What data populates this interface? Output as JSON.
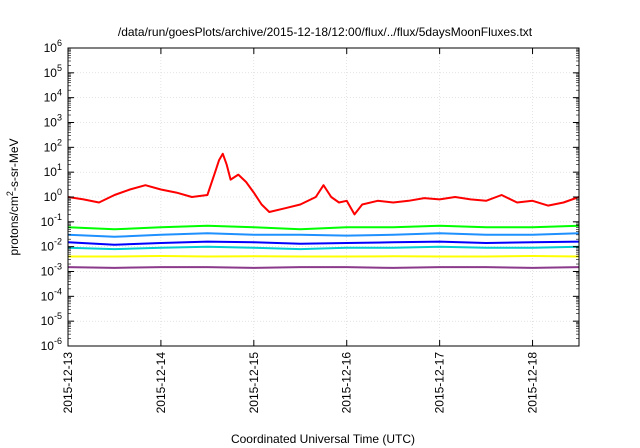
{
  "chart_data": {
    "type": "line",
    "title": "/data/run/goesPlots/archive/2015-12-18/12:00/flux/../flux/5daysMoonFluxes.txt",
    "xlabel": "Coordinated Universal Time (UTC)",
    "ylabel": "protons/cm²-s-sr-MeV",
    "yscale": "log",
    "ylim": [
      1e-06,
      1000000.0
    ],
    "xlim": [
      "2015-12-13",
      "2015-12-18 12:00"
    ],
    "x_ticks": [
      "2015-12-13",
      "2015-12-14",
      "2015-12-15",
      "2015-12-16",
      "2015-12-17",
      "2015-12-18"
    ],
    "y_ticks": [
      {
        "base": "10",
        "exp": "-6"
      },
      {
        "base": "10",
        "exp": "-5"
      },
      {
        "base": "10",
        "exp": "-4"
      },
      {
        "base": "10",
        "exp": "-3"
      },
      {
        "base": "10",
        "exp": "-2"
      },
      {
        "base": "10",
        "exp": "-1"
      },
      {
        "base": "10",
        "exp": "0"
      },
      {
        "base": "10",
        "exp": "1"
      },
      {
        "base": "10",
        "exp": "2"
      },
      {
        "base": "10",
        "exp": "3"
      },
      {
        "base": "10",
        "exp": "4"
      },
      {
        "base": "10",
        "exp": "5"
      },
      {
        "base": "10",
        "exp": "6"
      }
    ],
    "grid": true,
    "series": [
      {
        "color": "#ff0000",
        "x": [
          "2015-12-13 00:00",
          "2015-12-13 04:00",
          "2015-12-13 08:00",
          "2015-12-13 12:00",
          "2015-12-13 16:00",
          "2015-12-13 20:00",
          "2015-12-14 00:00",
          "2015-12-14 04:00",
          "2015-12-14 08:00",
          "2015-12-14 12:00",
          "2015-12-14 14:00",
          "2015-12-14 15:00",
          "2015-12-14 16:00",
          "2015-12-14 17:00",
          "2015-12-14 18:00",
          "2015-12-14 20:00",
          "2015-12-14 22:00",
          "2015-12-15 00:00",
          "2015-12-15 02:00",
          "2015-12-15 04:00",
          "2015-12-15 08:00",
          "2015-12-15 12:00",
          "2015-12-15 16:00",
          "2015-12-15 18:00",
          "2015-12-15 20:00",
          "2015-12-15 22:00",
          "2015-12-16 00:00",
          "2015-12-16 02:00",
          "2015-12-16 04:00",
          "2015-12-16 08:00",
          "2015-12-16 12:00",
          "2015-12-16 16:00",
          "2015-12-16 20:00",
          "2015-12-17 00:00",
          "2015-12-17 04:00",
          "2015-12-17 08:00",
          "2015-12-17 12:00",
          "2015-12-17 16:00",
          "2015-12-17 20:00",
          "2015-12-18 00:00",
          "2015-12-18 04:00",
          "2015-12-18 08:00",
          "2015-12-18 12:00"
        ],
        "y": [
          1.0,
          0.8,
          0.6,
          1.2,
          2.0,
          3.0,
          2.0,
          1.5,
          1.0,
          1.2,
          10,
          30,
          55,
          20,
          5,
          8,
          4,
          1.5,
          0.5,
          0.25,
          0.35,
          0.5,
          1.0,
          3.0,
          1.0,
          0.6,
          0.7,
          0.2,
          0.5,
          0.7,
          0.6,
          0.7,
          0.9,
          0.8,
          1.0,
          0.8,
          0.7,
          1.2,
          0.6,
          0.7,
          0.45,
          0.6,
          1.0
        ]
      },
      {
        "color": "#00ff00",
        "x": [
          "2015-12-13 00:00",
          "2015-12-13 12:00",
          "2015-12-14 00:00",
          "2015-12-14 12:00",
          "2015-12-15 00:00",
          "2015-12-15 12:00",
          "2015-12-16 00:00",
          "2015-12-16 12:00",
          "2015-12-17 00:00",
          "2015-12-17 12:00",
          "2015-12-18 00:00",
          "2015-12-18 12:00"
        ],
        "y": [
          0.06,
          0.05,
          0.06,
          0.07,
          0.06,
          0.05,
          0.06,
          0.06,
          0.07,
          0.06,
          0.06,
          0.07
        ]
      },
      {
        "color": "#1e90ff",
        "x": [
          "2015-12-13 00:00",
          "2015-12-13 12:00",
          "2015-12-14 00:00",
          "2015-12-14 12:00",
          "2015-12-15 00:00",
          "2015-12-15 12:00",
          "2015-12-16 00:00",
          "2015-12-16 12:00",
          "2015-12-17 00:00",
          "2015-12-17 12:00",
          "2015-12-18 00:00",
          "2015-12-18 12:00"
        ],
        "y": [
          0.03,
          0.025,
          0.03,
          0.035,
          0.03,
          0.03,
          0.028,
          0.03,
          0.035,
          0.03,
          0.03,
          0.035
        ]
      },
      {
        "color": "#0000ff",
        "x": [
          "2015-12-13 00:00",
          "2015-12-13 12:00",
          "2015-12-14 00:00",
          "2015-12-14 12:00",
          "2015-12-15 00:00",
          "2015-12-15 12:00",
          "2015-12-16 00:00",
          "2015-12-16 12:00",
          "2015-12-17 00:00",
          "2015-12-17 12:00",
          "2015-12-18 00:00",
          "2015-12-18 12:00"
        ],
        "y": [
          0.015,
          0.012,
          0.014,
          0.016,
          0.015,
          0.013,
          0.014,
          0.015,
          0.016,
          0.014,
          0.015,
          0.016
        ]
      },
      {
        "color": "#00ced1",
        "x": [
          "2015-12-13 00:00",
          "2015-12-13 12:00",
          "2015-12-14 00:00",
          "2015-12-14 12:00",
          "2015-12-15 00:00",
          "2015-12-15 12:00",
          "2015-12-16 00:00",
          "2015-12-16 12:00",
          "2015-12-17 00:00",
          "2015-12-17 12:00",
          "2015-12-18 00:00",
          "2015-12-18 12:00"
        ],
        "y": [
          0.009,
          0.008,
          0.009,
          0.01,
          0.009,
          0.008,
          0.009,
          0.009,
          0.01,
          0.009,
          0.009,
          0.01
        ]
      },
      {
        "color": "#ffff00",
        "x": [
          "2015-12-13 00:00",
          "2015-12-13 12:00",
          "2015-12-14 00:00",
          "2015-12-14 12:00",
          "2015-12-15 00:00",
          "2015-12-15 12:00",
          "2015-12-16 00:00",
          "2015-12-16 12:00",
          "2015-12-17 00:00",
          "2015-12-17 12:00",
          "2015-12-18 00:00",
          "2015-12-18 12:00"
        ],
        "y": [
          0.004,
          0.004,
          0.0042,
          0.004,
          0.0041,
          0.004,
          0.004,
          0.0041,
          0.004,
          0.004,
          0.0042,
          0.004
        ]
      },
      {
        "color": "#8b3a8b",
        "x": [
          "2015-12-13 00:00",
          "2015-12-13 12:00",
          "2015-12-14 00:00",
          "2015-12-14 12:00",
          "2015-12-15 00:00",
          "2015-12-15 12:00",
          "2015-12-16 00:00",
          "2015-12-16 12:00",
          "2015-12-17 00:00",
          "2015-12-17 12:00",
          "2015-12-18 00:00",
          "2015-12-18 12:00"
        ],
        "y": [
          0.0015,
          0.0014,
          0.0015,
          0.0015,
          0.0014,
          0.0015,
          0.0015,
          0.0014,
          0.0015,
          0.0015,
          0.0014,
          0.0015
        ]
      }
    ]
  }
}
